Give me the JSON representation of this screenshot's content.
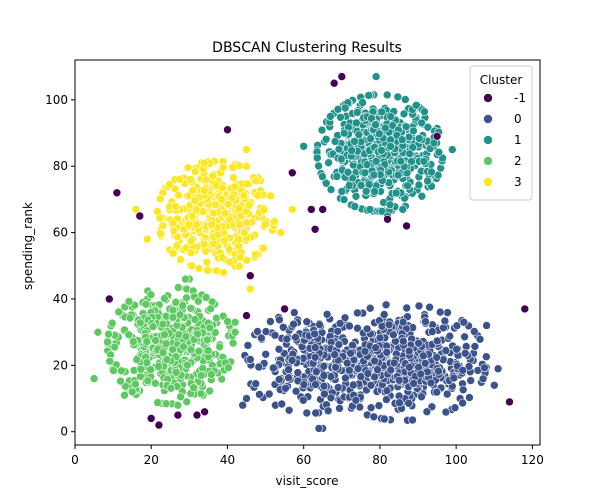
{
  "chart_data": {
    "type": "scatter",
    "title": "DBSCAN Clustering Results",
    "xlabel": "visit_score",
    "ylabel": "spending_rank",
    "xlim": [
      0,
      122
    ],
    "ylim": [
      -4,
      112
    ],
    "xticks": [
      0,
      20,
      40,
      60,
      80,
      100,
      120
    ],
    "yticks": [
      0,
      20,
      40,
      60,
      80,
      100
    ],
    "grid": false,
    "legend": {
      "title": "Cluster",
      "position": "top-right",
      "labels": [
        "-1",
        "0",
        "1",
        "2",
        "3"
      ]
    },
    "colors": {
      "-1": "#440154",
      "0": "#3b528b",
      "1": "#21918c",
      "2": "#5ec962",
      "3": "#fde725"
    },
    "series": [
      {
        "name": "-1",
        "points": [
          [
            11,
            72
          ],
          [
            17,
            65
          ],
          [
            40,
            91
          ],
          [
            45,
            35
          ],
          [
            46,
            47
          ],
          [
            55,
            37
          ],
          [
            57,
            78
          ],
          [
            62,
            67
          ],
          [
            63,
            61
          ],
          [
            65,
            67
          ],
          [
            68,
            105
          ],
          [
            70,
            107
          ],
          [
            82,
            64
          ],
          [
            87,
            62
          ],
          [
            95,
            89
          ],
          [
            9,
            40
          ],
          [
            32,
            5
          ],
          [
            34,
            6
          ],
          [
            27,
            5
          ],
          [
            20,
            4
          ],
          [
            22,
            2
          ],
          [
            118,
            37
          ],
          [
            114,
            9
          ]
        ]
      },
      {
        "name": "0",
        "cluster": {
          "cx": 86,
          "cy": 21,
          "sx": 10,
          "sy": 8,
          "n": 500
        },
        "extra_cluster": {
          "cx": 62,
          "cy": 21,
          "sx": 8,
          "sy": 7,
          "n": 260
        },
        "points": [
          [
            65,
            1
          ],
          [
            64,
            1
          ],
          [
            111,
            19
          ],
          [
            110,
            14
          ],
          [
            44,
            8
          ],
          [
            45,
            10
          ],
          [
            108,
            32
          ],
          [
            102,
            33
          ]
        ]
      },
      {
        "name": "1",
        "cluster": {
          "cx": 80,
          "cy": 84,
          "sx": 7.5,
          "sy": 8,
          "n": 520
        },
        "points": [
          [
            79,
            107
          ],
          [
            67,
            95
          ],
          [
            99,
            85
          ],
          [
            82,
            65
          ],
          [
            86,
            67
          ],
          [
            60,
            86
          ]
        ]
      },
      {
        "name": "2",
        "cluster": {
          "cx": 25,
          "cy": 26,
          "sx": 7.5,
          "sy": 8,
          "n": 480
        },
        "points": [
          [
            5,
            16
          ],
          [
            6,
            30
          ],
          [
            42,
            30
          ],
          [
            42,
            33
          ],
          [
            30,
            46
          ],
          [
            29,
            46
          ],
          [
            27,
            8
          ],
          [
            13,
            11
          ]
        ]
      },
      {
        "name": "3",
        "cluster": {
          "cx": 37,
          "cy": 65,
          "sx": 7,
          "sy": 7.5,
          "n": 430
        },
        "points": [
          [
            45,
            85
          ],
          [
            45,
            80
          ],
          [
            39,
            48
          ],
          [
            46,
            43
          ],
          [
            16,
            67
          ],
          [
            19,
            58
          ],
          [
            57,
            67
          ],
          [
            54,
            60
          ]
        ]
      }
    ]
  }
}
